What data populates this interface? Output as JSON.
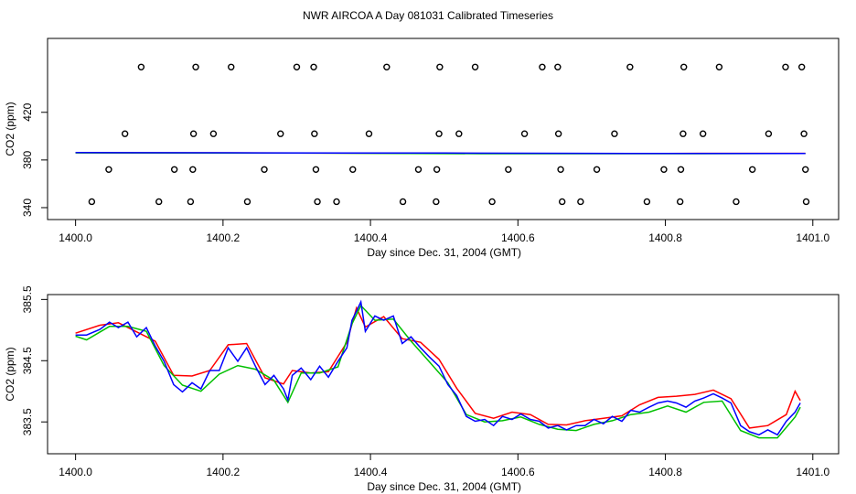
{
  "chart_data": [
    {
      "type": "scatter",
      "title": "NWR AIRCOA A  Day 081031  Calibrated Timeseries",
      "x_label": "Day since Dec. 31, 2004 (GMT)",
      "y_label": "CO2 (ppm)",
      "xlim": [
        1399.962,
        1401.035
      ],
      "ylim": [
        330,
        482
      ],
      "xticks": [
        {
          "value": 1400.0,
          "label": "1400.0"
        },
        {
          "value": 1400.2,
          "label": "1400.2"
        },
        {
          "value": 1400.4,
          "label": "1400.4"
        },
        {
          "value": 1400.6,
          "label": "1400.6"
        },
        {
          "value": 1400.8,
          "label": "1400.8"
        },
        {
          "value": 1401.0,
          "label": "1401.0"
        }
      ],
      "yticks": [
        340,
        380,
        420
      ],
      "points": {
        "color": "#000000",
        "x": [
          1400.089,
          1400.163,
          1400.211,
          1400.3,
          1400.323,
          1400.422,
          1400.494,
          1400.542,
          1400.633,
          1400.654,
          1400.752,
          1400.825,
          1400.873,
          1400.963,
          1400.985,
          1400.067,
          1400.16,
          1400.187,
          1400.278,
          1400.324,
          1400.398,
          1400.493,
          1400.52,
          1400.609,
          1400.655,
          1400.731,
          1400.824,
          1400.851,
          1400.94,
          1400.988,
          1400.045,
          1400.134,
          1400.159,
          1400.256,
          1400.326,
          1400.376,
          1400.465,
          1400.49,
          1400.587,
          1400.658,
          1400.707,
          1400.798,
          1400.821,
          1400.918,
          1400.99,
          1400.022,
          1400.113,
          1400.156,
          1400.233,
          1400.328,
          1400.354,
          1400.444,
          1400.489,
          1400.565,
          1400.66,
          1400.685,
          1400.775,
          1400.82,
          1400.896,
          1400.991
        ],
        "values": [
          458,
          458,
          458,
          458,
          458,
          458,
          458,
          458,
          458,
          458,
          458,
          458,
          458,
          458,
          458,
          402,
          402,
          402,
          402,
          402,
          402,
          402,
          402,
          402,
          402,
          402,
          402,
          402,
          402,
          402,
          372,
          372,
          372,
          372,
          372,
          372,
          372,
          372,
          372,
          372,
          372,
          372,
          372,
          372,
          372,
          345,
          345,
          345,
          345,
          345,
          345,
          345,
          345,
          345,
          345,
          345,
          345,
          345,
          345,
          345
        ]
      },
      "series": [
        {
          "color": "#ff0000",
          "x": [
            1400.0,
            1400.3,
            1400.55,
            1400.8,
            1400.99
          ],
          "values": [
            386.1,
            385.9,
            385.5,
            385.5,
            385.6
          ]
        },
        {
          "color": "#00c000",
          "x": [
            1400.0,
            1400.3,
            1400.55,
            1400.8,
            1400.99
          ],
          "values": [
            386.0,
            385.8,
            385.3,
            385.3,
            385.4
          ]
        },
        {
          "color": "#0000ff",
          "x": [
            1400.0,
            1400.25,
            1400.5,
            1400.75,
            1400.99
          ],
          "values": [
            386.2,
            386.0,
            385.8,
            385.4,
            385.4
          ]
        }
      ]
    },
    {
      "type": "line",
      "x_label": "Day since Dec. 31, 2004 (GMT)",
      "y_label": "CO2 (ppm)",
      "xlim": [
        1399.962,
        1401.035
      ],
      "ylim": [
        382.98,
        385.58
      ],
      "xticks": [
        {
          "value": 1400.0,
          "label": "1400.0"
        },
        {
          "value": 1400.2,
          "label": "1400.2"
        },
        {
          "value": 1400.4,
          "label": "1400.4"
        },
        {
          "value": 1400.6,
          "label": "1400.6"
        },
        {
          "value": 1400.8,
          "label": "1400.8"
        },
        {
          "value": 1401.0,
          "label": "1401.0"
        }
      ],
      "yticks": [
        383.5,
        384.5,
        385.5
      ],
      "series": [
        {
          "color": "#ff0000",
          "x": [
            1400.0,
            1400.033,
            1400.058,
            1400.083,
            1400.108,
            1400.133,
            1400.158,
            1400.182,
            1400.207,
            1400.232,
            1400.257,
            1400.282,
            1400.294,
            1400.319,
            1400.343,
            1400.368,
            1400.381,
            1400.393,
            1400.418,
            1400.443,
            1400.468,
            1400.493,
            1400.517,
            1400.542,
            1400.567,
            1400.592,
            1400.617,
            1400.641,
            1400.666,
            1400.691,
            1400.716,
            1400.741,
            1400.765,
            1400.79,
            1400.815,
            1400.84,
            1400.865,
            1400.889,
            1400.914,
            1400.939,
            1400.964,
            1400.976,
            1400.983
          ],
          "values": [
            384.95,
            385.08,
            385.12,
            384.97,
            384.82,
            384.26,
            384.25,
            384.34,
            384.76,
            384.78,
            384.22,
            384.12,
            384.34,
            384.3,
            384.32,
            384.8,
            385.36,
            385.05,
            385.22,
            384.86,
            384.8,
            384.52,
            384.05,
            383.64,
            383.56,
            383.66,
            383.62,
            383.46,
            383.45,
            383.52,
            383.56,
            383.6,
            383.78,
            383.9,
            383.92,
            383.95,
            384.02,
            383.88,
            383.4,
            383.44,
            383.62,
            384.0,
            383.85
          ]
        },
        {
          "color": "#00c000",
          "x": [
            1400.0,
            1400.015,
            1400.046,
            1400.071,
            1400.096,
            1400.12,
            1400.145,
            1400.17,
            1400.195,
            1400.22,
            1400.244,
            1400.269,
            1400.288,
            1400.306,
            1400.331,
            1400.356,
            1400.375,
            1400.387,
            1400.406,
            1400.431,
            1400.455,
            1400.48,
            1400.505,
            1400.53,
            1400.555,
            1400.579,
            1400.604,
            1400.629,
            1400.654,
            1400.679,
            1400.703,
            1400.728,
            1400.753,
            1400.778,
            1400.803,
            1400.828,
            1400.852,
            1400.877,
            1400.902,
            1400.927,
            1400.952,
            1400.976,
            1400.983
          ],
          "values": [
            384.9,
            384.84,
            385.06,
            385.06,
            384.98,
            384.42,
            384.1,
            384.0,
            384.28,
            384.42,
            384.36,
            384.18,
            383.82,
            384.3,
            384.3,
            384.4,
            385.1,
            385.4,
            385.16,
            385.18,
            384.82,
            384.48,
            384.14,
            383.62,
            383.5,
            383.52,
            383.58,
            383.46,
            383.38,
            383.36,
            383.46,
            383.52,
            383.62,
            383.66,
            383.76,
            383.66,
            383.82,
            383.84,
            383.36,
            383.24,
            383.24,
            383.58,
            383.74
          ]
        },
        {
          "color": "#0000ff",
          "x": [
            1400.0,
            1400.015,
            1400.033,
            1400.046,
            1400.058,
            1400.071,
            1400.083,
            1400.096,
            1400.108,
            1400.12,
            1400.133,
            1400.145,
            1400.158,
            1400.17,
            1400.182,
            1400.195,
            1400.207,
            1400.22,
            1400.232,
            1400.244,
            1400.257,
            1400.269,
            1400.282,
            1400.288,
            1400.294,
            1400.306,
            1400.319,
            1400.331,
            1400.343,
            1400.356,
            1400.368,
            1400.375,
            1400.381,
            1400.387,
            1400.393,
            1400.406,
            1400.418,
            1400.431,
            1400.443,
            1400.455,
            1400.468,
            1400.48,
            1400.493,
            1400.505,
            1400.517,
            1400.53,
            1400.542,
            1400.555,
            1400.567,
            1400.579,
            1400.592,
            1400.604,
            1400.617,
            1400.629,
            1400.641,
            1400.654,
            1400.666,
            1400.679,
            1400.691,
            1400.703,
            1400.716,
            1400.728,
            1400.741,
            1400.753,
            1400.765,
            1400.778,
            1400.79,
            1400.803,
            1400.815,
            1400.828,
            1400.84,
            1400.852,
            1400.865,
            1400.877,
            1400.889,
            1400.902,
            1400.914,
            1400.927,
            1400.939,
            1400.952,
            1400.964,
            1400.976,
            1400.983
          ],
          "values": [
            384.92,
            384.92,
            385.01,
            385.13,
            385.04,
            385.13,
            384.89,
            385.04,
            384.74,
            384.49,
            384.11,
            383.99,
            384.14,
            384.04,
            384.34,
            384.34,
            384.71,
            384.49,
            384.71,
            384.41,
            384.11,
            384.26,
            384.04,
            383.86,
            384.26,
            384.38,
            384.19,
            384.41,
            384.23,
            384.49,
            384.71,
            385.16,
            385.31,
            385.46,
            384.98,
            385.23,
            385.16,
            385.23,
            384.78,
            384.89,
            384.71,
            384.56,
            384.41,
            384.11,
            383.93,
            383.59,
            383.51,
            383.54,
            383.44,
            383.59,
            383.54,
            383.63,
            383.54,
            383.51,
            383.4,
            383.44,
            383.37,
            383.44,
            383.44,
            383.54,
            383.47,
            383.59,
            383.51,
            383.69,
            383.66,
            383.74,
            383.81,
            383.84,
            383.81,
            383.74,
            383.84,
            383.89,
            383.96,
            383.89,
            383.81,
            383.44,
            383.34,
            383.29,
            383.37,
            383.29,
            383.51,
            383.66,
            383.81
          ]
        }
      ]
    }
  ]
}
